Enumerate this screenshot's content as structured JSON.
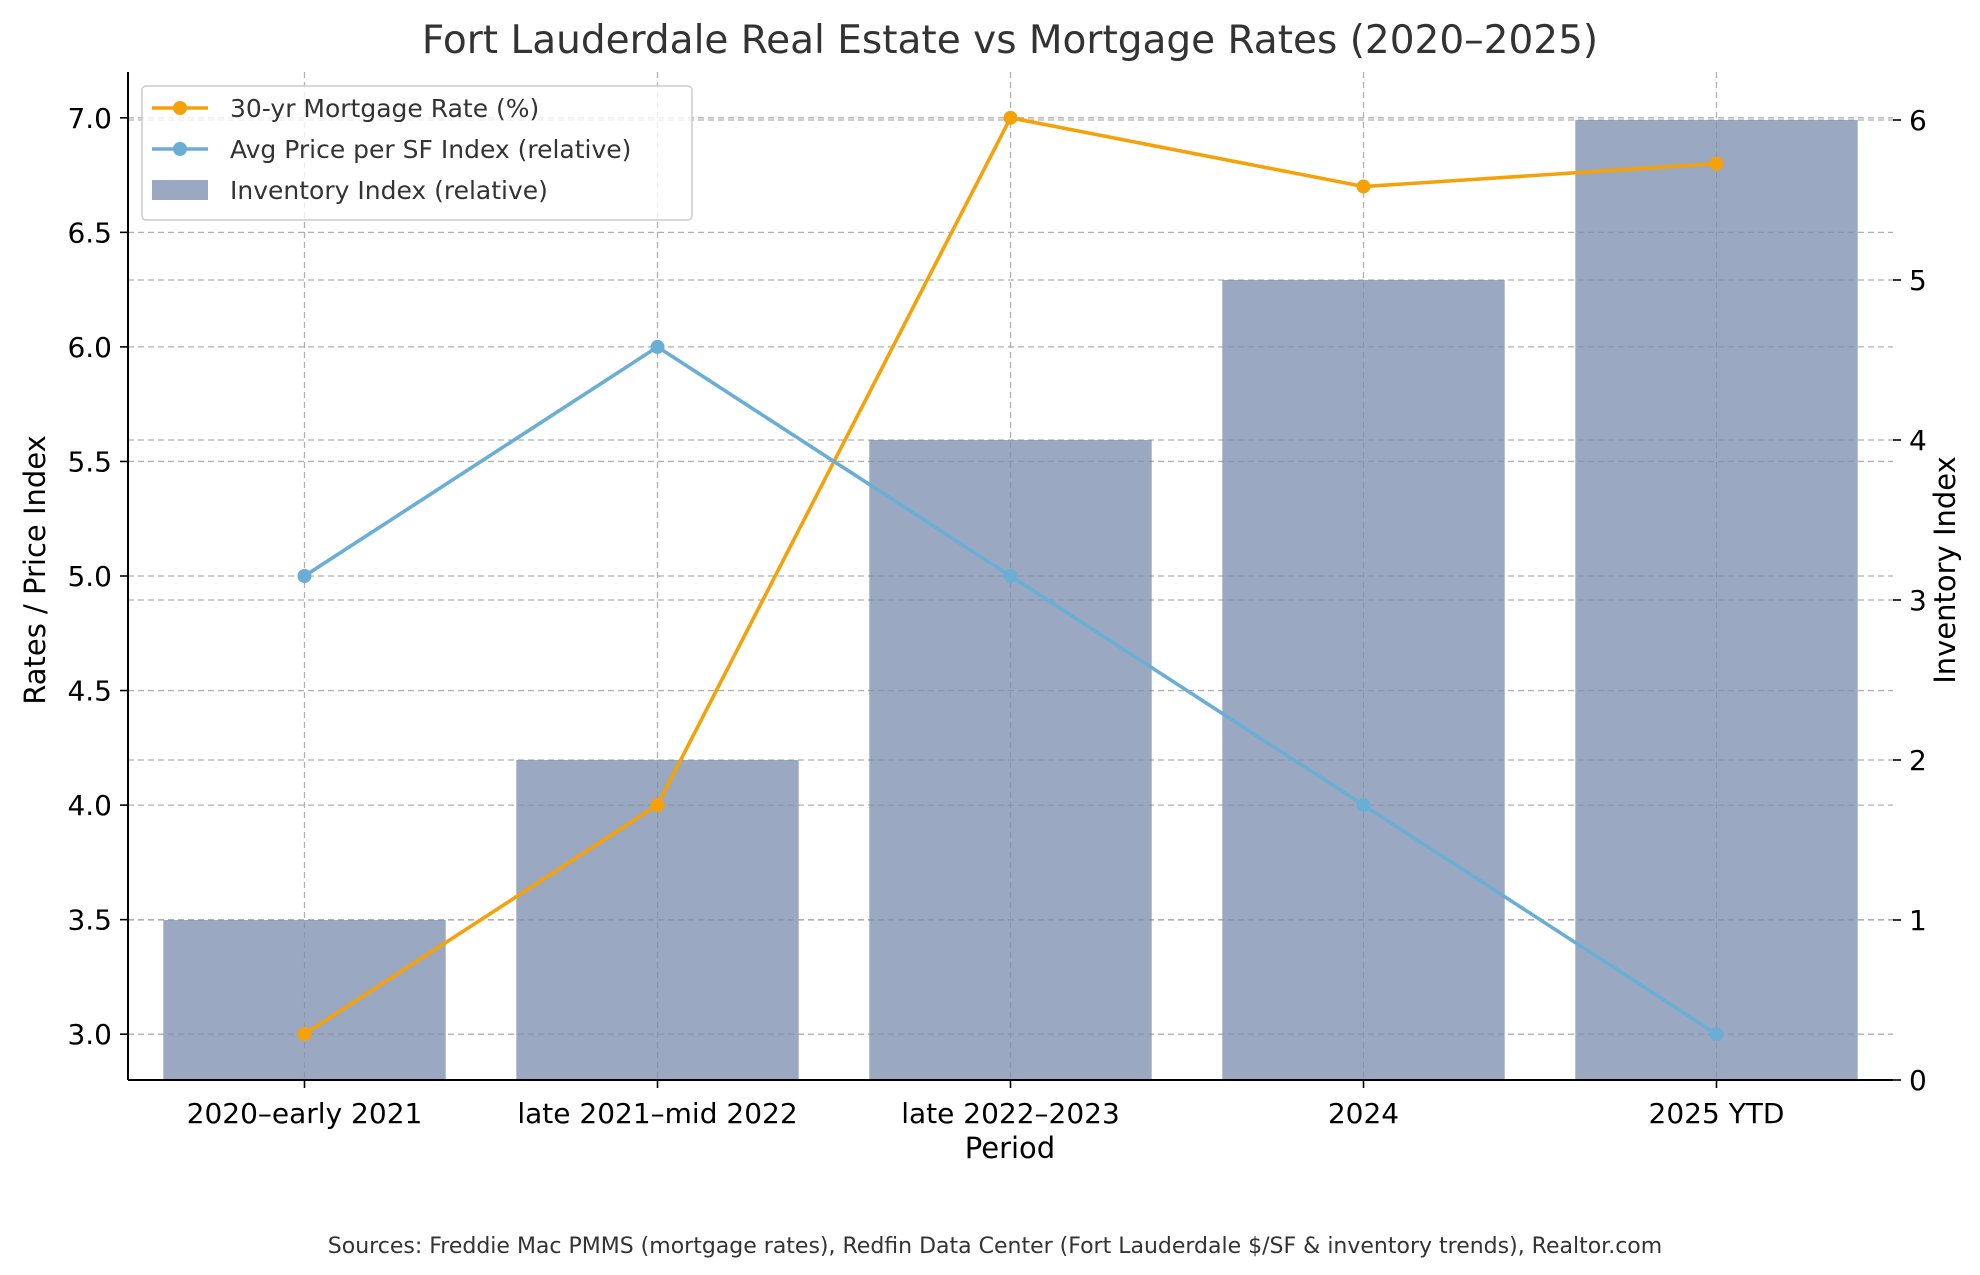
{
  "chart_data": {
    "type": "bar+line",
    "title": "Fort Lauderdale Real Estate vs Mortgage Rates (2020–2025)",
    "xlabel": "Period",
    "ylabel_left": "Rates / Price Index",
    "ylabel_right": "Inventory Index",
    "categories": [
      "2020–early 2021",
      "late 2021–mid 2022",
      "late 2022–2023",
      "2024",
      "2025 YTD"
    ],
    "ylim_left": [
      2.8,
      7.2
    ],
    "yticks_left": [
      "3.0",
      "3.5",
      "4.0",
      "4.5",
      "5.0",
      "5.5",
      "6.0",
      "6.5",
      "7.0"
    ],
    "ylim_right": [
      0,
      6.3
    ],
    "yticks_right": [
      "0",
      "1",
      "2",
      "3",
      "4",
      "5",
      "6"
    ],
    "grid": true,
    "legend_position": "top-left",
    "series": [
      {
        "name": "30-yr Mortgage Rate (%)",
        "type": "line",
        "axis": "left",
        "color": "#f5a20a",
        "values": [
          3.0,
          4.0,
          7.0,
          6.7,
          6.8
        ]
      },
      {
        "name": "Avg Price per SF Index (relative)",
        "type": "line",
        "axis": "left",
        "color": "#6aaed6",
        "values": [
          5.0,
          6.0,
          5.0,
          4.0,
          3.0
        ]
      },
      {
        "name": "Inventory Index (relative)",
        "type": "bar",
        "axis": "right",
        "color": "#7d90b0",
        "values": [
          1,
          2,
          4,
          5,
          6
        ]
      }
    ],
    "source_note": "Sources: Freddie Mac PMMS (mortgage rates), Redfin Data Center (Fort Lauderdale $/SF & inventory trends), Realtor.com"
  }
}
